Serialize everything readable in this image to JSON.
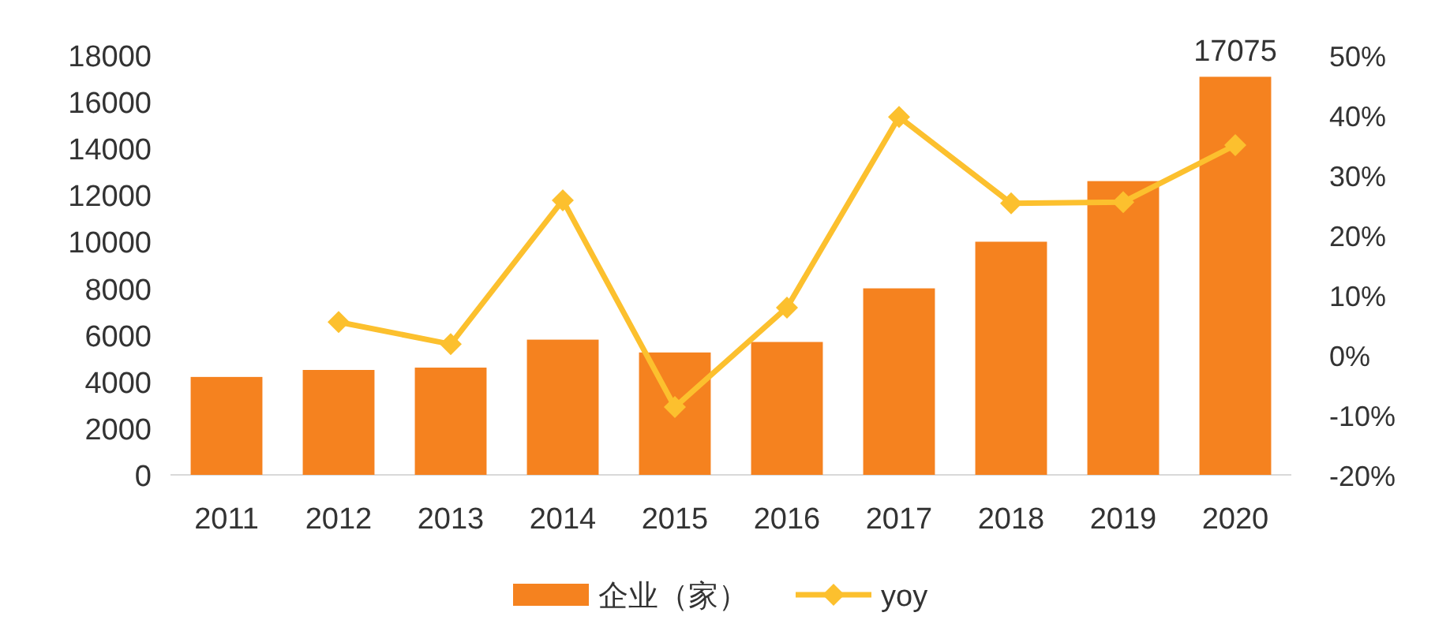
{
  "chart_data": {
    "type": "bar",
    "categories": [
      "2011",
      "2012",
      "2013",
      "2014",
      "2015",
      "2016",
      "2017",
      "2018",
      "2019",
      "2020"
    ],
    "series": [
      {
        "name": "企业（家）",
        "color": "#f5821f",
        "values": [
          4200,
          4500,
          4600,
          5800,
          5250,
          5700,
          8000,
          10000,
          12600,
          17075
        ],
        "value_labels": [
          null,
          null,
          null,
          null,
          null,
          null,
          null,
          null,
          null,
          "17075"
        ]
      },
      {
        "name": "yoy",
        "type": "line",
        "axis": "y2",
        "color": "#fcc02e",
        "marker": "diamond",
        "values": [
          null,
          5.5,
          1.8,
          25.8,
          -8.7,
          7.9,
          39.7,
          25.3,
          25.5,
          35
        ]
      }
    ],
    "ylim": [
      0,
      18000
    ],
    "yticks": [
      0,
      2000,
      4000,
      6000,
      8000,
      10000,
      12000,
      14000,
      16000,
      18000
    ],
    "y2lim": [
      -20,
      50
    ],
    "y2ticks": [
      {
        "value": -20,
        "label": "-20%"
      },
      {
        "value": -10,
        "label": "-10%"
      },
      {
        "value": 0,
        "label": "0%"
      },
      {
        "value": 10,
        "label": "10%"
      },
      {
        "value": 20,
        "label": "20%"
      },
      {
        "value": 30,
        "label": "30%"
      },
      {
        "value": 40,
        "label": "40%"
      },
      {
        "value": 50,
        "label": "50%"
      }
    ],
    "legend": "bottom"
  }
}
